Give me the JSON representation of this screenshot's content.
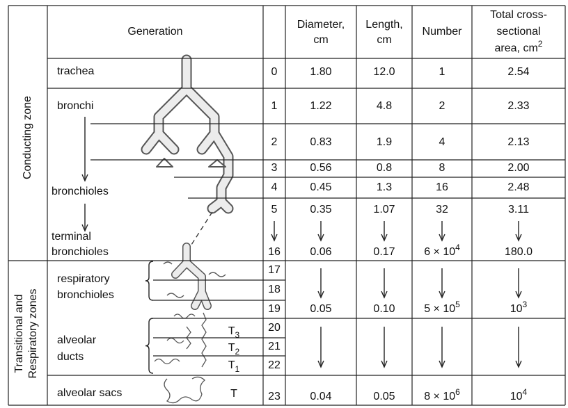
{
  "header": {
    "generation": "Generation",
    "diameter": [
      "Diameter,",
      "cm"
    ],
    "length": [
      "Length,",
      "cm"
    ],
    "number": "Number",
    "area": [
      "Total cross-",
      "sectional",
      "area, cm"
    ],
    "area_sup": "2"
  },
  "zones": {
    "conducting": "Conducting zone",
    "transitional": [
      "Transitional and",
      "Respiratory zones"
    ]
  },
  "airways": [
    [
      "trachea"
    ],
    [
      "bronchi"
    ],
    [
      "bronchioles"
    ],
    [
      "terminal",
      "bronchioles"
    ],
    [
      "respiratory",
      "bronchioles"
    ],
    [
      "alveolar",
      "ducts"
    ],
    [
      "alveolar sacs"
    ]
  ],
  "duct_marks": [
    {
      "base": "T",
      "sub": "3"
    },
    {
      "base": "T",
      "sub": "2"
    },
    {
      "base": "T",
      "sub": "1"
    },
    {
      "base": "T"
    }
  ],
  "rows": [
    {
      "gen": "0",
      "diameter": "1.80",
      "length": "12.0",
      "number": {
        "base": "1"
      },
      "area": {
        "base": "2.54"
      }
    },
    {
      "gen": "1",
      "diameter": "1.22",
      "length": "4.8",
      "number": {
        "base": "2"
      },
      "area": {
        "base": "2.33"
      }
    },
    {
      "gen": "2",
      "diameter": "0.83",
      "length": "1.9",
      "number": {
        "base": "4"
      },
      "area": {
        "base": "2.13"
      }
    },
    {
      "gen": "3",
      "diameter": "0.56",
      "length": "0.8",
      "number": {
        "base": "8"
      },
      "area": {
        "base": "2.00"
      }
    },
    {
      "gen": "4",
      "diameter": "0.45",
      "length": "1.3",
      "number": {
        "base": "16"
      },
      "area": {
        "base": "2.48"
      }
    },
    {
      "gen": "5",
      "diameter": "0.35",
      "length": "1.07",
      "number": {
        "base": "32"
      },
      "area": {
        "base": "3.11"
      }
    },
    {
      "gen": "16",
      "diameter": "0.06",
      "length": "0.17",
      "number": {
        "base": "6 × 10",
        "sup": "4"
      },
      "area": {
        "base": "180.0"
      }
    },
    {
      "gen": "17"
    },
    {
      "gen": "18"
    },
    {
      "gen": "19",
      "diameter": "0.05",
      "length": "0.10",
      "number": {
        "base": "5 × 10",
        "sup": "5"
      },
      "area": {
        "base": "10",
        "sup": "3"
      }
    },
    {
      "gen": "20"
    },
    {
      "gen": "21"
    },
    {
      "gen": "22"
    },
    {
      "gen": "23",
      "diameter": "0.04",
      "length": "0.05",
      "number": {
        "base": "8 × 10",
        "sup": "6"
      },
      "area": {
        "base": "10",
        "sup": "4"
      }
    }
  ]
}
